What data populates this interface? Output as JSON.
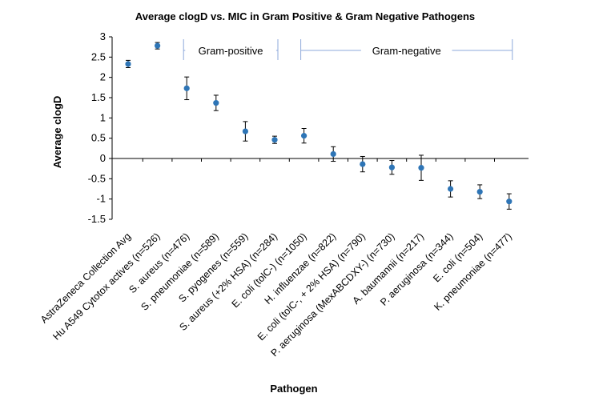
{
  "chart_data": {
    "type": "scatter",
    "title": "Average clogD vs. MIC in Gram Positive & Gram Negative Pathogens",
    "xlabel": "Pathogen",
    "ylabel": "Average clogD",
    "ylim": [
      -1.5,
      3
    ],
    "yticks": [
      "3",
      "2.5",
      "2",
      "1.5",
      "1",
      "0.5",
      "0",
      "-0.5",
      "-1",
      "-1.5"
    ],
    "categories": [
      "AstraZeneca Collection Avg",
      "Hu A549 Cytotox actives (n=526)",
      "S. aureus (n=476)",
      "S. pneumoniae (n=589)",
      "S. pyogenes (n=559)",
      "S. aureus (+2% HSA) (n=284)",
      "E. coli (tolC-) (n=1050)",
      "H. influenzae (n=822)",
      "E. coli (tolC-, + 2% HSA) (n=790)",
      "P. aeruginosa (MexABCDXY-) (n=730)",
      "A. baumannii (n=217)",
      "P. aeruginosa (n=344)",
      "E. coli (n=504)",
      "K. pneumoniae (n=477)"
    ],
    "values": [
      2.33,
      2.78,
      1.73,
      1.37,
      0.67,
      0.46,
      0.56,
      0.11,
      -0.14,
      -0.22,
      -0.23,
      -0.75,
      -0.82,
      -1.06
    ],
    "errors": [
      0.09,
      0.08,
      0.28,
      0.19,
      0.24,
      0.09,
      0.18,
      0.18,
      0.19,
      0.17,
      0.31,
      0.2,
      0.17,
      0.19
    ],
    "marker_color": "#2e75b6",
    "grid": false,
    "groups": [
      {
        "label": "Gram-positive",
        "start": 2,
        "end": 5
      },
      {
        "label": "Gram-negative",
        "start": 6,
        "end": 13
      }
    ],
    "bracket_color": "#8ea9db"
  }
}
